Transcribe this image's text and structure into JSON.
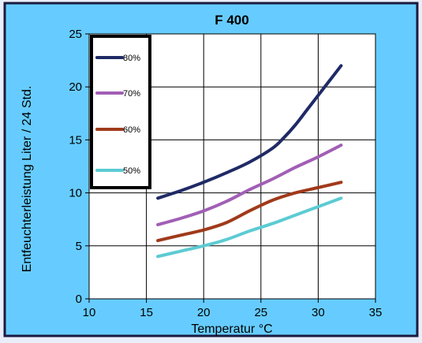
{
  "colors": {
    "background": "#66ccff",
    "plot_area": "#ffffff",
    "border": "#1a1a40",
    "series_80": "#1f2a66",
    "series_70": "#a15fb5",
    "series_60": "#a03a1a",
    "series_50": "#5ccbd3"
  },
  "chart_data": {
    "type": "line",
    "title": "F 400",
    "xlabel": "Temperatur °C",
    "ylabel": "Entfeuchterleistung Liter / 24 Std.",
    "xlim": [
      10,
      35
    ],
    "ylim": [
      0,
      25
    ],
    "x_ticks": [
      10,
      15,
      20,
      25,
      30,
      35
    ],
    "y_ticks": [
      0,
      5,
      10,
      15,
      20,
      25
    ],
    "grid": true,
    "legend_position": "top-left",
    "series": [
      {
        "name": "80%",
        "color": "#1f2a66",
        "x": [
          16,
          18,
          20,
          22,
          24,
          26,
          27,
          28,
          29,
          30,
          31,
          32
        ],
        "y": [
          9.5,
          10.2,
          11.0,
          11.9,
          12.9,
          14.2,
          15.2,
          16.4,
          17.8,
          19.2,
          20.6,
          22.0
        ]
      },
      {
        "name": "70%",
        "color": "#a15fb5",
        "x": [
          16,
          18,
          20,
          22,
          24,
          26,
          28,
          30,
          32
        ],
        "y": [
          7.0,
          7.6,
          8.3,
          9.2,
          10.3,
          11.3,
          12.4,
          13.4,
          14.5
        ]
      },
      {
        "name": "60%",
        "color": "#a03a1a",
        "x": [
          16,
          18,
          20,
          22,
          24,
          26,
          28,
          30,
          32
        ],
        "y": [
          5.5,
          6.0,
          6.5,
          7.2,
          8.3,
          9.3,
          10.0,
          10.5,
          11.0
        ]
      },
      {
        "name": "50%",
        "color": "#5ccbd3",
        "x": [
          16,
          18,
          20,
          22,
          24,
          26,
          28,
          30,
          32
        ],
        "y": [
          4.0,
          4.5,
          5.0,
          5.6,
          6.4,
          7.1,
          7.9,
          8.7,
          9.5
        ]
      }
    ]
  }
}
